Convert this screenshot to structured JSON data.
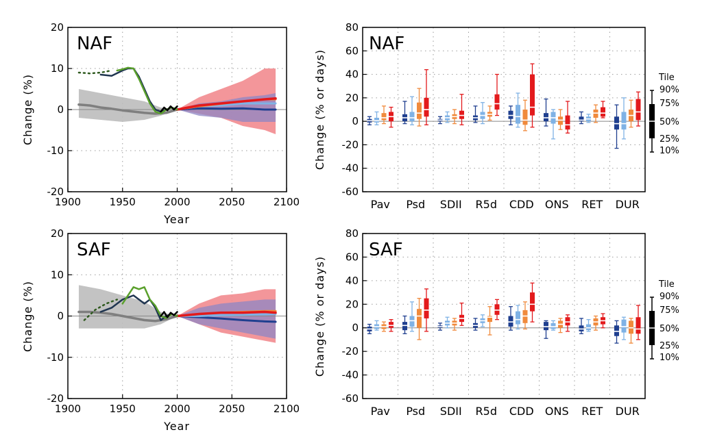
{
  "colors": {
    "gray_band": "#bdbdbd",
    "gray_line": "#7f7f7f",
    "red_band": "#f28b8f",
    "blue_band": "#8e86c4",
    "blue_overlap": "#8a6fa8",
    "dark_blue": "#1f3f8f",
    "light_blue": "#7fb2e5",
    "orange": "#f08a3c",
    "red": "#e31a1c",
    "obs_dark": "#1f3550",
    "obs_green": "#5aa02c",
    "obs_dark_green": "#2f5a1f",
    "obs_black": "#000000"
  },
  "legend_key": {
    "title": "Tile",
    "labels": [
      "90%",
      "75%",
      "50%",
      "25%",
      "10%"
    ],
    "values": [
      90,
      75,
      50,
      25,
      10
    ]
  },
  "chart_data": [
    {
      "type": "line",
      "title": "NAF",
      "xlabel": "Year",
      "ylabel": "Change (%)",
      "xlim": [
        1900,
        2100
      ],
      "ylim": [
        -20,
        20
      ],
      "xticks": [
        1900,
        1950,
        2000,
        2050,
        2100
      ],
      "yticks": [
        -20,
        -10,
        0,
        10,
        20
      ],
      "grid": true,
      "bands": [
        {
          "color": "gray_band",
          "x": [
            1910,
            1930,
            1950,
            1970,
            1985,
            2000
          ],
          "low": [
            -2,
            -2.5,
            -3,
            -2.5,
            -1.5,
            0
          ],
          "high": [
            5,
            4,
            3,
            2,
            0.5,
            0
          ]
        },
        {
          "color": "red_band",
          "x": [
            2000,
            2020,
            2040,
            2060,
            2080,
            2090
          ],
          "low": [
            0,
            -1,
            -2,
            -4,
            -5,
            -6
          ],
          "high": [
            0,
            3,
            5,
            7,
            10,
            10
          ]
        },
        {
          "color": "blue_band",
          "x": [
            2000,
            2020,
            2040,
            2060,
            2080,
            2090
          ],
          "low": [
            0,
            -1.5,
            -2,
            -3,
            -3,
            -3
          ],
          "high": [
            0,
            1.5,
            2,
            3,
            3.5,
            4
          ]
        }
      ],
      "lines": [
        {
          "color": "gray_line",
          "width": 3.5,
          "x": [
            1910,
            1920,
            1930,
            1940,
            1950,
            1960,
            1970,
            1980,
            1990,
            2000
          ],
          "y": [
            1.2,
            1,
            0.5,
            0.2,
            -0.2,
            -0.5,
            -0.8,
            -1,
            -0.8,
            0
          ]
        },
        {
          "color": "dark_blue",
          "width": 3,
          "x": [
            2000,
            2020,
            2040,
            2060,
            2080,
            2090
          ],
          "y": [
            0,
            0.3,
            0.2,
            0.3,
            0,
            0
          ]
        },
        {
          "color": "light_blue",
          "width": 3,
          "x": [
            2000,
            2020,
            2040,
            2060,
            2080,
            2090
          ],
          "y": [
            0,
            0.8,
            1,
            1.5,
            1.5,
            1.5
          ]
        },
        {
          "color": "orange",
          "width": 3,
          "x": [
            2000,
            2020,
            2040,
            2060,
            2080,
            2090
          ],
          "y": [
            0,
            0.8,
            1.4,
            2,
            2.5,
            2.5
          ]
        },
        {
          "color": "red",
          "width": 3.5,
          "x": [
            2000,
            2020,
            2040,
            2060,
            2080,
            2090
          ],
          "y": [
            0,
            1,
            1.5,
            2,
            2.5,
            2.7
          ]
        },
        {
          "color": "obs_dark_green",
          "width": 2.5,
          "dashed": true,
          "x": [
            1910,
            1920,
            1930,
            1940
          ],
          "y": [
            9,
            8.8,
            9,
            9.5
          ]
        },
        {
          "color": "obs_dark",
          "width": 2.5,
          "x": [
            1930,
            1940,
            1950,
            1955,
            1960,
            1965,
            1970,
            1975,
            1980,
            1985,
            1990,
            1995,
            2000
          ],
          "y": [
            8.5,
            8.2,
            9.5,
            10,
            10,
            8,
            5,
            2,
            0,
            -0.5,
            0,
            0.5,
            0
          ]
        },
        {
          "color": "obs_green",
          "width": 2.5,
          "x": [
            1945,
            1950,
            1955,
            1960,
            1965,
            1970,
            1975,
            1980,
            1985,
            1990,
            1995,
            2000
          ],
          "y": [
            9.5,
            9.8,
            10.2,
            10,
            7.5,
            4.5,
            1.5,
            -0.5,
            -1,
            0,
            0.5,
            0
          ]
        },
        {
          "color": "obs_black",
          "width": 2.5,
          "x": [
            1985,
            1988,
            1991,
            1994,
            1997,
            2000
          ],
          "y": [
            -0.5,
            0.5,
            -0.2,
            0.8,
            0,
            0.8
          ]
        }
      ]
    },
    {
      "type": "box",
      "title": "NAF",
      "ylabel": "Change (% or days)",
      "ylim": [
        -60,
        80
      ],
      "yticks": [
        -60,
        -40,
        -20,
        0,
        20,
        40,
        60,
        80
      ],
      "grid": true,
      "categories": [
        "Pav",
        "Psd",
        "SDII",
        "R5d",
        "CDD",
        "ONS",
        "RET",
        "DUR"
      ],
      "series_colors": [
        "dark_blue",
        "light_blue",
        "orange",
        "red"
      ],
      "boxes": [
        [
          [
            -3,
            -1,
            0.5,
            2,
            4
          ],
          [
            -3,
            -1,
            0.5,
            3,
            8
          ],
          [
            -2,
            1,
            3,
            7,
            13
          ],
          [
            -5,
            0,
            4,
            8,
            12
          ]
        ],
        [
          [
            -2,
            0,
            3,
            6,
            17
          ],
          [
            -3,
            0,
            3,
            8,
            21
          ],
          [
            -4,
            2,
            7,
            16,
            28
          ],
          [
            -3,
            4,
            10,
            20,
            44
          ]
        ],
        [
          [
            -2,
            0,
            1,
            2,
            4
          ],
          [
            -1,
            1,
            3,
            5,
            8
          ],
          [
            -2,
            2,
            4,
            6,
            10
          ],
          [
            -3,
            2,
            5,
            9,
            23
          ]
        ],
        [
          [
            -1,
            1,
            3,
            5,
            13
          ],
          [
            -2,
            2,
            5,
            8,
            16
          ],
          [
            1,
            4,
            6,
            8,
            13
          ],
          [
            5,
            10,
            15,
            23,
            40
          ]
        ],
        [
          [
            -3,
            2,
            5,
            9,
            13
          ],
          [
            -5,
            -2,
            4,
            14,
            24
          ],
          [
            -8,
            -3,
            1,
            10,
            18
          ],
          [
            -5,
            5,
            12,
            40,
            49
          ]
        ],
        [
          [
            -4,
            0,
            3,
            7,
            19
          ],
          [
            -15,
            -2,
            3,
            8,
            10
          ],
          [
            -7,
            -3,
            1,
            4,
            10
          ],
          [
            -10,
            -7,
            -3,
            5,
            17
          ]
        ],
        [
          [
            -2,
            0,
            1,
            4,
            8
          ],
          [
            -1,
            0,
            2,
            4,
            6
          ],
          [
            -1,
            3,
            7,
            10,
            14
          ],
          [
            3,
            4,
            7,
            12,
            17
          ]
        ],
        [
          [
            -23,
            -7,
            -2,
            4,
            14
          ],
          [
            -15,
            -7,
            -2,
            8,
            20
          ],
          [
            -5,
            0,
            5,
            10,
            18
          ],
          [
            -4,
            1,
            8,
            19,
            25
          ]
        ]
      ]
    },
    {
      "type": "line",
      "title": "SAF",
      "xlabel": "Year",
      "ylabel": "Change (%)",
      "xlim": [
        1900,
        2100
      ],
      "ylim": [
        -20,
        20
      ],
      "xticks": [
        1900,
        1950,
        2000,
        2050,
        2100
      ],
      "yticks": [
        -20,
        -10,
        0,
        10,
        20
      ],
      "grid": true,
      "bands": [
        {
          "color": "gray_band",
          "x": [
            1910,
            1930,
            1950,
            1970,
            1985,
            2000
          ],
          "low": [
            -3,
            -3,
            -3,
            -3,
            -2,
            0
          ],
          "high": [
            7.5,
            6.5,
            5,
            3.5,
            1,
            0
          ]
        },
        {
          "color": "red_band",
          "x": [
            2000,
            2020,
            2040,
            2060,
            2080,
            2090
          ],
          "low": [
            0,
            -2,
            -4,
            -5,
            -6,
            -6.5
          ],
          "high": [
            0,
            3,
            5,
            5.5,
            6.5,
            6.5
          ]
        },
        {
          "color": "blue_band",
          "x": [
            2000,
            2020,
            2040,
            2060,
            2080,
            2090
          ],
          "low": [
            0,
            -2,
            -3,
            -4,
            -5,
            -5.5
          ],
          "high": [
            0,
            2,
            3,
            3.5,
            4,
            4
          ]
        }
      ],
      "lines": [
        {
          "color": "gray_line",
          "width": 3.5,
          "x": [
            1910,
            1920,
            1930,
            1940,
            1950,
            1960,
            1970,
            1980,
            1990,
            2000
          ],
          "y": [
            1,
            1,
            0.8,
            0.5,
            0,
            -0.5,
            -1,
            -1.2,
            -0.8,
            0
          ]
        },
        {
          "color": "dark_blue",
          "width": 3,
          "x": [
            2000,
            2020,
            2040,
            2060,
            2080,
            2090
          ],
          "y": [
            0,
            -0.3,
            -0.6,
            -1,
            -1.3,
            -1.4
          ]
        },
        {
          "color": "light_blue",
          "width": 3,
          "x": [
            2000,
            2020,
            2040,
            2060,
            2080,
            2090
          ],
          "y": [
            0,
            0,
            0.2,
            0.3,
            0.4,
            0.5
          ]
        },
        {
          "color": "orange",
          "width": 3,
          "x": [
            2000,
            2020,
            2040,
            2060,
            2080,
            2090
          ],
          "y": [
            0,
            0.5,
            0.8,
            1,
            1.2,
            1.2
          ]
        },
        {
          "color": "red",
          "width": 3.5,
          "x": [
            2000,
            2020,
            2040,
            2060,
            2080,
            2090
          ],
          "y": [
            0,
            0.5,
            0.8,
            0.8,
            1,
            0.8
          ]
        },
        {
          "color": "obs_dark_green",
          "width": 2.5,
          "dashed": true,
          "x": [
            1915,
            1925,
            1935,
            1945
          ],
          "y": [
            -1,
            1.5,
            3,
            4
          ]
        },
        {
          "color": "obs_dark",
          "width": 2.5,
          "x": [
            1930,
            1940,
            1950,
            1960,
            1965,
            1970,
            1975,
            1980,
            1985,
            1990,
            1995,
            2000
          ],
          "y": [
            1,
            2,
            4,
            5,
            4,
            3,
            4,
            2,
            -1,
            0,
            0.5,
            0
          ]
        },
        {
          "color": "obs_green",
          "width": 2.5,
          "x": [
            1950,
            1955,
            1960,
            1965,
            1970,
            1975,
            1980,
            1985,
            1990,
            1995,
            2000
          ],
          "y": [
            3,
            5,
            7,
            6.5,
            7,
            4,
            2.5,
            0,
            -0.5,
            0.5,
            0
          ]
        },
        {
          "color": "obs_black",
          "width": 2.5,
          "x": [
            1985,
            1988,
            1991,
            1994,
            1997,
            2000
          ],
          "y": [
            0,
            1,
            -0.3,
            0.8,
            0.2,
            1
          ]
        }
      ]
    },
    {
      "type": "box",
      "title": "SAF",
      "ylabel": "Change (% or days)",
      "ylim": [
        -60,
        80
      ],
      "yticks": [
        -60,
        -40,
        -20,
        0,
        20,
        40,
        60,
        80
      ],
      "grid": true,
      "categories": [
        "Pav",
        "Psd",
        "SDII",
        "R5d",
        "CDD",
        "ONS",
        "RET",
        "DUR"
      ],
      "series_colors": [
        "dark_blue",
        "light_blue",
        "orange",
        "red"
      ],
      "boxes": [
        [
          [
            -5,
            -3,
            -1,
            1,
            3
          ],
          [
            -2,
            -1,
            1,
            3,
            6
          ],
          [
            -3,
            -1,
            1,
            3,
            5
          ],
          [
            -3,
            0,
            2,
            5,
            7
          ]
        ],
        [
          [
            -5,
            -2,
            2,
            5,
            10
          ],
          [
            -3,
            1,
            6,
            10,
            22
          ],
          [
            -10,
            0,
            10,
            16,
            25
          ],
          [
            -3,
            8,
            15,
            25,
            33
          ]
        ],
        [
          [
            -2,
            0,
            1,
            2,
            4
          ],
          [
            0,
            2,
            4,
            6,
            9
          ],
          [
            -2,
            2,
            4,
            6,
            8
          ],
          [
            2,
            5,
            8,
            11,
            21
          ]
        ],
        [
          [
            -2,
            0,
            2,
            4,
            8
          ],
          [
            1,
            4,
            6,
            8,
            11
          ],
          [
            -6,
            5,
            9,
            10,
            18
          ],
          [
            7,
            11,
            15,
            20,
            24
          ]
        ],
        [
          [
            -2,
            1,
            5,
            10,
            18
          ],
          [
            -1,
            3,
            7,
            14,
            19
          ],
          [
            -1,
            4,
            10,
            15,
            22
          ],
          [
            5,
            14,
            20,
            30,
            38
          ]
        ],
        [
          [
            -9,
            -2,
            1,
            5,
            6
          ],
          [
            -2,
            -1,
            1,
            4,
            6
          ],
          [
            -4,
            0,
            3,
            6,
            8
          ],
          [
            -3,
            2,
            5,
            9,
            11
          ]
        ],
        [
          [
            -5,
            -3,
            -1,
            2,
            8
          ],
          [
            -3,
            -2,
            0,
            3,
            7
          ],
          [
            -2,
            2,
            5,
            8,
            10
          ],
          [
            0,
            3,
            6,
            9,
            12
          ]
        ],
        [
          [
            -13,
            -7,
            -3,
            2,
            6
          ],
          [
            -10,
            -4,
            1,
            7,
            9
          ],
          [
            -13,
            -5,
            0,
            6,
            8
          ],
          [
            -10,
            -5,
            -1,
            9,
            19
          ]
        ]
      ]
    }
  ]
}
